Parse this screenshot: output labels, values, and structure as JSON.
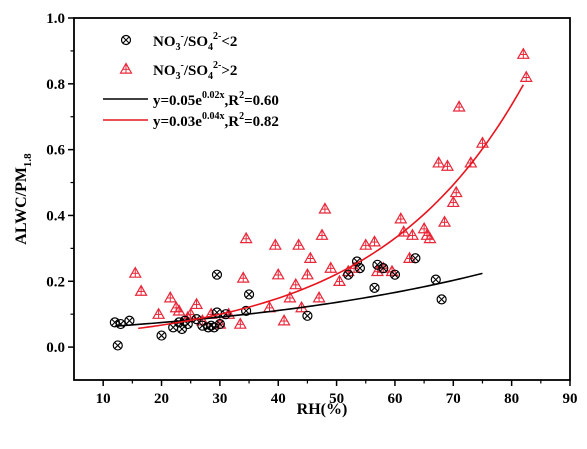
{
  "chart_data": {
    "type": "scatter",
    "xlabel": "RH(%)",
    "ylabel_main": "ALWC/PM",
    "ylabel_sub": "1.8",
    "xlim": [
      5,
      90
    ],
    "ylim": [
      -0.1,
      1.0
    ],
    "xticks": [
      10,
      20,
      30,
      40,
      50,
      60,
      70,
      80,
      90
    ],
    "yticks": [
      0.0,
      0.2,
      0.4,
      0.6,
      0.8,
      1.0
    ],
    "grid": false,
    "legend_position": "top-left",
    "legend": {
      "series1": {
        "p1": "NO",
        "s1": "3",
        "p2": "-",
        "p3": "/SO",
        "s2": "4",
        "p4": "2-",
        "p5": "<2"
      },
      "series2": {
        "p1": "NO",
        "s1": "3",
        "p2": "-",
        "p3": "/SO",
        "s2": "4",
        "p4": "2-",
        "p5": ">2"
      },
      "fit1": {
        "p1": "y=0.05e",
        "sup": "0.02x",
        "p2": ",R",
        "sup2": "2",
        "p3": "=0.60"
      },
      "fit2": {
        "p1": "y=0.03e",
        "sup": "0.04x",
        "p2": ",R",
        "sup2": "2",
        "p3": "=0.82"
      }
    },
    "colors": {
      "series1": "#000000",
      "series2": "#e8283a",
      "fit1": "#000000",
      "fit2": "#e8141e"
    },
    "series": [
      {
        "marker": "circle-x",
        "x": [
          12,
          12.5,
          13,
          14.5,
          20,
          22,
          23,
          23.5,
          24,
          24.5,
          26,
          27,
          28,
          28.5,
          29,
          29.5,
          29.5,
          30,
          31,
          34.5,
          35,
          45,
          52,
          53.5,
          54,
          56.5,
          57,
          58,
          60,
          63.5,
          67,
          68
        ],
        "y": [
          0.075,
          0.005,
          0.07,
          0.08,
          0.035,
          0.06,
          0.075,
          0.055,
          0.08,
          0.07,
          0.085,
          0.065,
          0.06,
          0.065,
          0.06,
          0.105,
          0.22,
          0.07,
          0.1,
          0.11,
          0.16,
          0.095,
          0.22,
          0.26,
          0.24,
          0.18,
          0.25,
          0.24,
          0.22,
          0.27,
          0.205,
          0.145
        ]
      },
      {
        "marker": "triangle",
        "x": [
          15.5,
          16.5,
          19.5,
          21.5,
          22.5,
          23,
          24.5,
          25,
          26,
          27,
          28.5,
          30,
          31.5,
          33.5,
          34,
          34.5,
          38.5,
          39.5,
          40,
          41,
          42,
          43,
          43.5,
          44,
          45,
          45.5,
          47,
          47.5,
          48,
          49,
          50.5,
          52,
          53,
          55,
          56.5,
          57,
          58,
          59.5,
          61,
          61.5,
          62.5,
          63,
          65,
          65.5,
          66,
          67.5,
          68.5,
          69,
          70,
          70.5,
          71,
          73,
          75,
          82,
          82.5
        ],
        "y": [
          0.225,
          0.17,
          0.1,
          0.15,
          0.12,
          0.11,
          0.09,
          0.1,
          0.13,
          0.08,
          0.1,
          0.07,
          0.1,
          0.07,
          0.21,
          0.33,
          0.12,
          0.31,
          0.22,
          0.08,
          0.15,
          0.19,
          0.31,
          0.12,
          0.22,
          0.27,
          0.15,
          0.34,
          0.42,
          0.24,
          0.2,
          0.23,
          0.24,
          0.31,
          0.32,
          0.23,
          0.24,
          0.23,
          0.39,
          0.35,
          0.27,
          0.34,
          0.36,
          0.34,
          0.33,
          0.56,
          0.38,
          0.55,
          0.44,
          0.47,
          0.73,
          0.56,
          0.62,
          0.89,
          0.82
        ]
      }
    ],
    "fits": [
      {
        "a": 0.05,
        "b": 0.02,
        "x_range": [
          12,
          75
        ]
      },
      {
        "a": 0.03,
        "b": 0.04,
        "x_range": [
          16,
          82
        ]
      }
    ]
  }
}
